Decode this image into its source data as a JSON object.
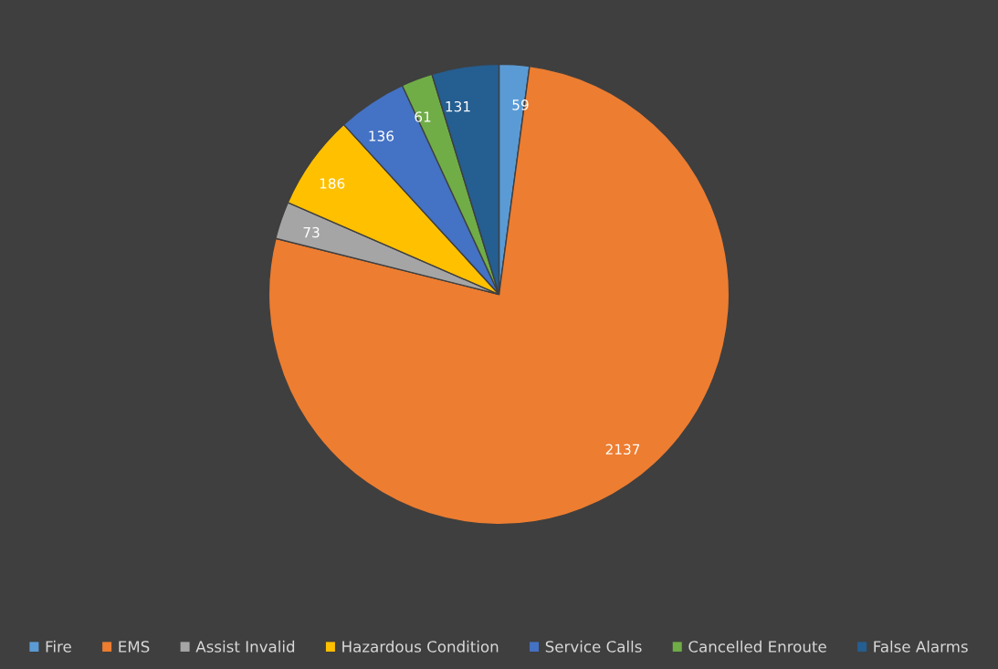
{
  "chart_data": {
    "type": "pie",
    "categories": [
      "Fire",
      "EMS",
      "Assist Invalid",
      "Hazardous Condition",
      "Service Calls",
      "Cancelled Enroute",
      "False Alarms"
    ],
    "values": [
      59,
      2137,
      73,
      186,
      136,
      61,
      131
    ],
    "colors": [
      "#5b9bd5",
      "#ed7d31",
      "#a5a5a5",
      "#ffc000",
      "#4472c4",
      "#70ad47",
      "#255e91"
    ],
    "data_labels": true,
    "legend": "bottom"
  }
}
